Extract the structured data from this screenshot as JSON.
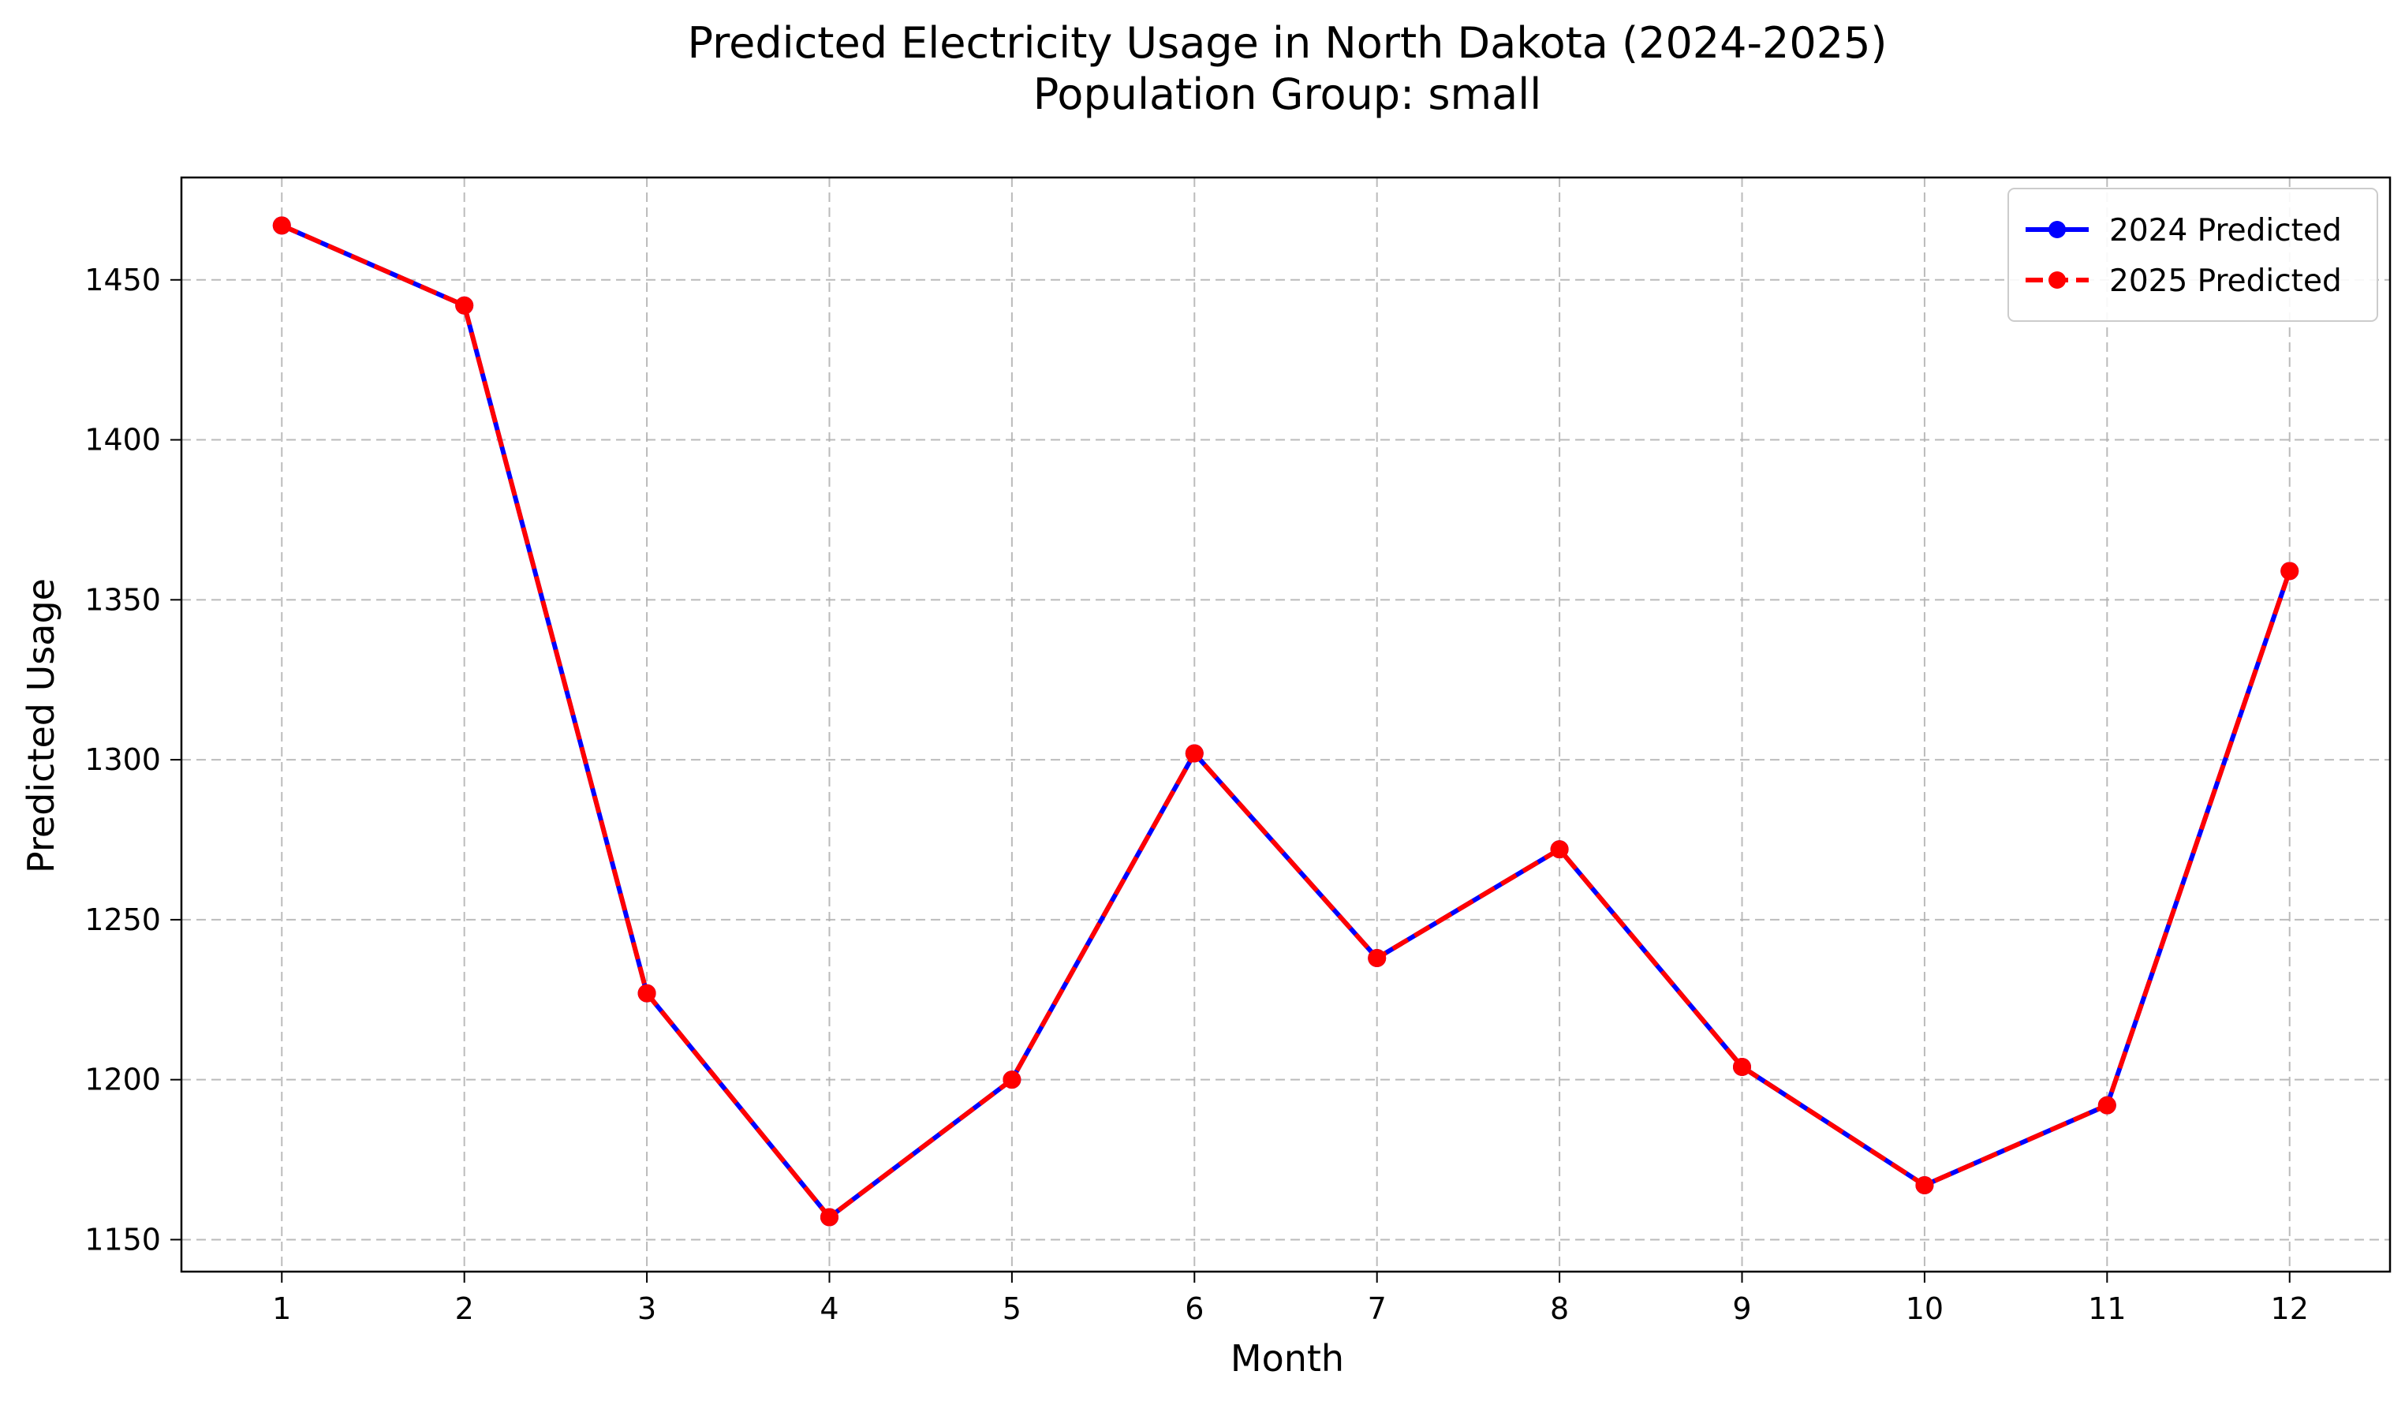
{
  "chart_data": {
    "type": "line",
    "title": "Predicted Electricity Usage in North Dakota (2024-2025)",
    "subtitle": "Population Group: small",
    "xlabel": "Month",
    "ylabel": "Predicted Usage",
    "x": [
      1,
      2,
      3,
      4,
      5,
      6,
      7,
      8,
      9,
      10,
      11,
      12
    ],
    "x_tick_labels": [
      "1",
      "2",
      "3",
      "4",
      "5",
      "6",
      "7",
      "8",
      "9",
      "10",
      "11",
      "12"
    ],
    "xlim": [
      0.45,
      12.55
    ],
    "ylim": [
      1140,
      1482
    ],
    "y_ticks": [
      1150,
      1200,
      1250,
      1300,
      1350,
      1400,
      1450
    ],
    "y_tick_labels": [
      "1150",
      "1200",
      "1250",
      "1300",
      "1350",
      "1400",
      "1450"
    ],
    "grid": true,
    "legend_position": "top-right",
    "series": [
      {
        "name": "2024 Predicted",
        "color": "#0000ff",
        "line_style": "solid",
        "marker": "circle",
        "values": [
          1467,
          1442,
          1227,
          1157,
          1200,
          1302,
          1238,
          1272,
          1204,
          1167,
          1192,
          1359
        ]
      },
      {
        "name": "2025 Predicted",
        "color": "#ff0000",
        "line_style": "dashed",
        "marker": "circle",
        "values": [
          1467,
          1442,
          1227,
          1157,
          1200,
          1302,
          1238,
          1272,
          1204,
          1167,
          1192,
          1359
        ]
      }
    ]
  }
}
